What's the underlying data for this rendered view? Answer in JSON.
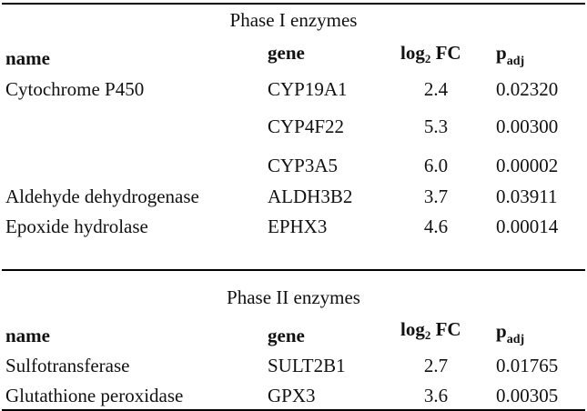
{
  "phase1": {
    "title": "Phase I enzymes",
    "headers": {
      "name": "name",
      "gene": "gene",
      "log_main": "log",
      "log_sub": "2",
      "log_tail": " FC",
      "p_main": "p",
      "p_sub": "adj"
    },
    "rows": [
      {
        "name": "Cytochrome P450",
        "gene": "CYP19A1",
        "fc": "2.4",
        "p": "0.02320"
      },
      {
        "name": "",
        "gene": "CYP4F22",
        "fc": "5.3",
        "p": "0.00300"
      },
      {
        "name": "",
        "gene": "CYP3A5",
        "fc": "6.0",
        "p": "0.00002"
      },
      {
        "name": "Aldehyde dehydrogenase",
        "gene": "ALDH3B2",
        "fc": "3.7",
        "p": "0.03911"
      },
      {
        "name": "Epoxide hydrolase",
        "gene": "EPHX3",
        "fc": "4.6",
        "p": "0.00014"
      }
    ]
  },
  "phase2": {
    "title": "Phase II enzymes",
    "headers": {
      "name": "name",
      "gene": "gene",
      "log_main": "log",
      "log_sub": "2",
      "log_tail": " FC",
      "p_main": "p",
      "p_sub": "adj"
    },
    "rows": [
      {
        "name": "Sulfotransferase",
        "gene": "SULT2B1",
        "fc": "2.7",
        "p": "0.01765"
      },
      {
        "name": "Glutathione peroxidase",
        "gene": "GPX3",
        "fc": "3.6",
        "p": "0.00305"
      }
    ]
  }
}
